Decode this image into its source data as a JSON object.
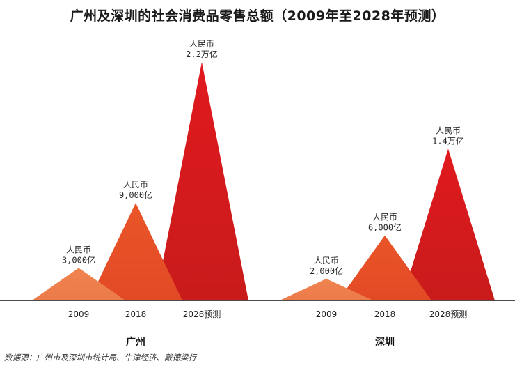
{
  "chart_data": {
    "type": "area",
    "title": "广州及深圳的社会消费品零售总额（2009年至2028年预测）",
    "categories": [
      "2009",
      "2018",
      "2028预测"
    ],
    "currency_prefix": "人民币",
    "groups": [
      {
        "name": "广州",
        "values": [
          3000,
          9000,
          22000
        ],
        "value_labels": [
          "3,000亿",
          "9,000亿",
          "2.2万亿"
        ]
      },
      {
        "name": "深圳",
        "values": [
          2000,
          6000,
          14000
        ],
        "value_labels": [
          "2,000亿",
          "6,000亿",
          "1.4万亿"
        ]
      }
    ],
    "unit": "亿元人民币",
    "colors": [
      "#f07a4a",
      "#e8552a",
      "#d81e1e"
    ],
    "ylim": [
      0,
      22000
    ],
    "grid": false,
    "legend": "none"
  },
  "source": "数据源：广州市及深圳市统计局、牛津经济、戴德梁行"
}
